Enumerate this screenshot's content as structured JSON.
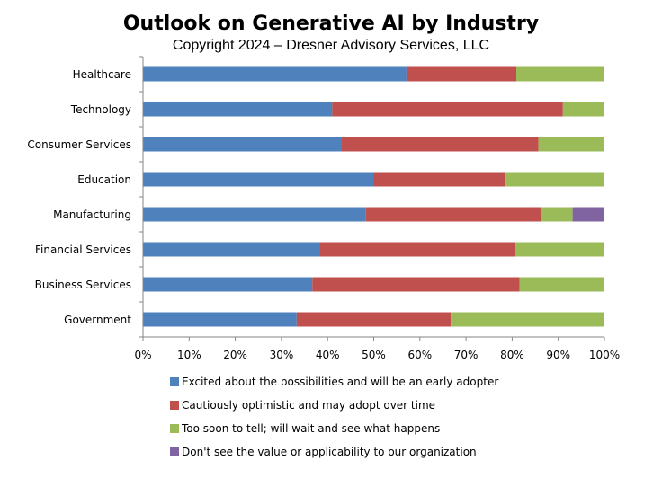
{
  "chart_data": {
    "type": "bar",
    "orientation": "horizontal",
    "stacked": true,
    "title": "Outlook on Generative AI by Industry",
    "subtitle": "Copyright 2024 – Dresner Advisory Services, LLC",
    "xlabel": "",
    "ylabel": "",
    "xlim": [
      0,
      100
    ],
    "x_ticks": [
      "0%",
      "10%",
      "20%",
      "30%",
      "40%",
      "50%",
      "60%",
      "70%",
      "80%",
      "90%",
      "100%"
    ],
    "grid": false,
    "legend_position": "bottom",
    "categories": [
      "Healthcare",
      "Technology",
      "Consumer Services",
      "Education",
      "Manufacturing",
      "Financial Services",
      "Business Services",
      "Government"
    ],
    "series": [
      {
        "name": "Excited about the possibilities and will be an early adopter",
        "color": "#4f81bd",
        "values": [
          57.1,
          41.0,
          42.9,
          50.0,
          48.3,
          38.4,
          36.7,
          33.3
        ]
      },
      {
        "name": "Cautiously optimistic and may adopt over time",
        "color": "#c0504d",
        "values": [
          23.8,
          50.0,
          42.8,
          28.6,
          37.9,
          42.3,
          44.9,
          33.4
        ]
      },
      {
        "name": "Too soon to tell; will wait and see what happens",
        "color": "#9bbb59",
        "values": [
          19.1,
          9.0,
          14.3,
          21.4,
          6.9,
          19.3,
          18.4,
          33.3
        ]
      },
      {
        "name": "Don't see the value or applicability to our organization",
        "color": "#8064a2",
        "values": [
          0,
          0,
          0,
          0,
          6.9,
          0,
          0,
          0
        ]
      }
    ]
  }
}
